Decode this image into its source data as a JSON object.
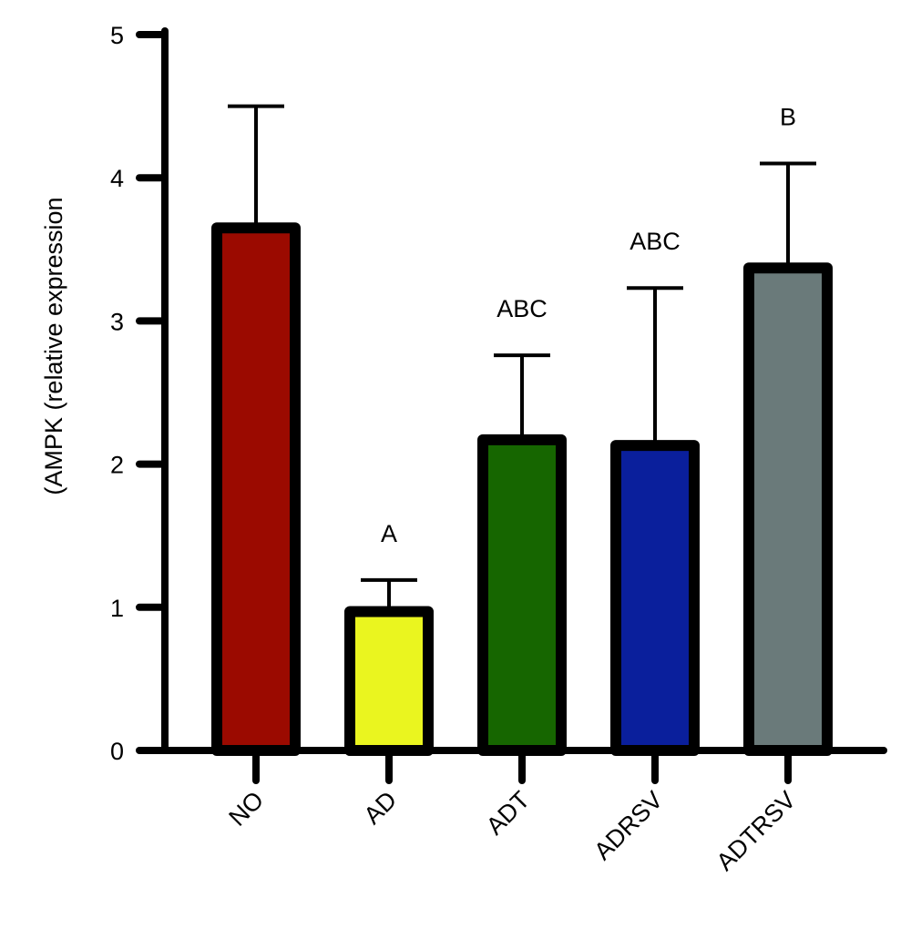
{
  "chart_data": {
    "type": "bar",
    "title": "",
    "xlabel": "",
    "ylabel": "(AMPK (relative expression",
    "ylim": [
      0,
      5
    ],
    "yticks": [
      0,
      1,
      2,
      3,
      4,
      5
    ],
    "grid": false,
    "legend": "none",
    "categories": [
      "NO",
      "AD",
      "ADT",
      "ADRSV",
      "ADTRSV"
    ],
    "values": [
      3.65,
      0.97,
      2.17,
      2.13,
      3.37
    ],
    "error_upper": [
      4.5,
      1.19,
      2.76,
      3.23,
      4.1
    ],
    "significance_labels": [
      "",
      "A",
      "ABC",
      "ABC",
      "B"
    ],
    "colors": [
      "#9b0a00",
      "#eaf51f",
      "#166600",
      "#0a1f9c",
      "#6a7a7a"
    ]
  }
}
